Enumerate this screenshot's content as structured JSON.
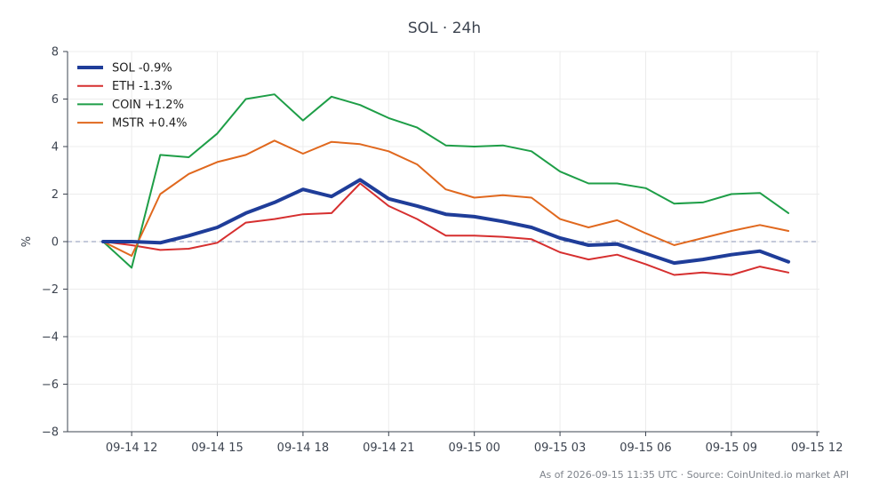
{
  "chart_data": {
    "type": "line",
    "title": "SOL · 24h",
    "xlabel": "",
    "ylabel": "%",
    "ylim": [
      -8,
      8
    ],
    "yticks": [
      -8,
      -6,
      -4,
      -2,
      0,
      2,
      4,
      6,
      8
    ],
    "ytick_labels": [
      "−8",
      "−6",
      "−4",
      "−2",
      "0",
      "2",
      "4",
      "6",
      "8"
    ],
    "xticks": [
      "09-14 12",
      "09-14 15",
      "09-14 18",
      "09-14 21",
      "09-15 00",
      "09-15 03",
      "09-15 06",
      "09-15 09",
      "09-15 12"
    ],
    "x": [
      "09-14 11",
      "09-14 12",
      "09-14 13",
      "09-14 14",
      "09-14 15",
      "09-14 16",
      "09-14 17",
      "09-14 18",
      "09-14 19",
      "09-14 20",
      "09-14 21",
      "09-14 22",
      "09-14 23",
      "09-15 00",
      "09-15 01",
      "09-15 02",
      "09-15 03",
      "09-15 04",
      "09-15 05",
      "09-15 06",
      "09-15 07",
      "09-15 08",
      "09-15 09",
      "09-15 10",
      "09-15 11"
    ],
    "grid": true,
    "baseline": 0,
    "legend_position": "top-left",
    "series": [
      {
        "name": "SOL -0.9%",
        "color": "#1f3d99",
        "width": 4,
        "values": [
          0.0,
          0.0,
          -0.05,
          0.25,
          0.6,
          1.2,
          1.65,
          2.2,
          1.9,
          2.6,
          1.8,
          1.5,
          1.15,
          1.05,
          0.85,
          0.6,
          0.15,
          -0.15,
          -0.1,
          -0.5,
          -0.9,
          -0.75,
          -0.55,
          -0.4,
          -0.85
        ]
      },
      {
        "name": "ETH -1.3%",
        "color": "#d62f2f",
        "width": 2,
        "values": [
          0.0,
          -0.15,
          -0.35,
          -0.3,
          -0.05,
          0.8,
          0.95,
          1.15,
          1.2,
          2.45,
          1.5,
          0.95,
          0.25,
          0.25,
          0.2,
          0.1,
          -0.45,
          -0.75,
          -0.55,
          -0.95,
          -1.4,
          -1.3,
          -1.4,
          -1.05,
          -1.3
        ]
      },
      {
        "name": "COIN +1.2%",
        "color": "#1e9e47",
        "width": 2,
        "values": [
          0.0,
          -1.1,
          3.65,
          3.55,
          4.55,
          6.0,
          6.2,
          5.1,
          6.1,
          5.75,
          5.2,
          4.8,
          4.05,
          4.0,
          4.05,
          3.8,
          2.95,
          2.45,
          2.45,
          2.25,
          1.6,
          1.65,
          2.0,
          2.05,
          1.2
        ]
      },
      {
        "name": "MSTR +0.4%",
        "color": "#e0681e",
        "width": 2,
        "values": [
          0.0,
          -0.6,
          2.0,
          2.85,
          3.35,
          3.65,
          4.25,
          3.7,
          4.2,
          4.1,
          3.8,
          3.25,
          2.2,
          1.85,
          1.95,
          1.85,
          0.95,
          0.6,
          0.9,
          0.35,
          -0.15,
          0.15,
          0.45,
          0.7,
          0.45
        ]
      }
    ]
  },
  "footer": "As of 2026-09-15 11:35 UTC · Source: CoinUnited.io market API"
}
